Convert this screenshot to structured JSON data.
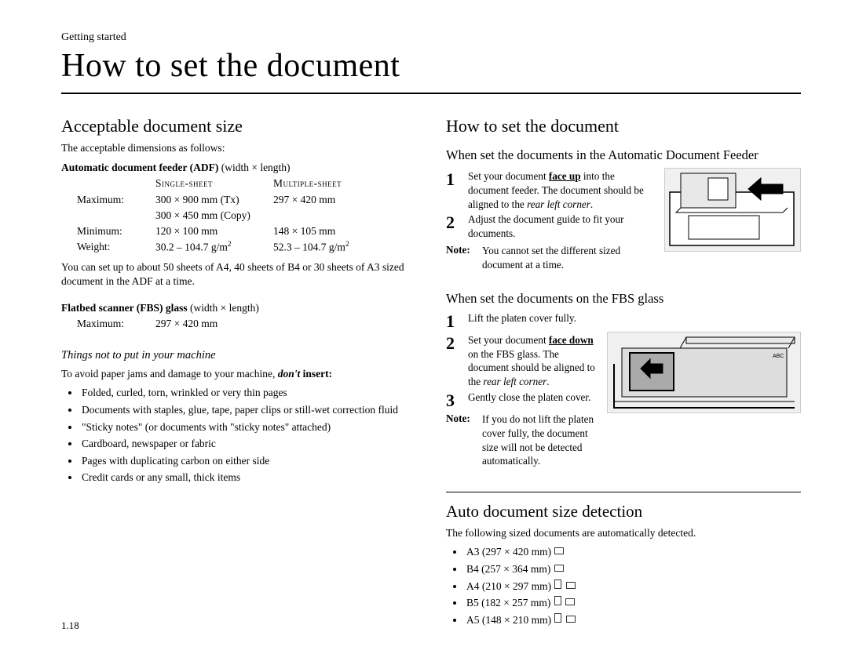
{
  "breadcrumb": "Getting started",
  "title": "How to set the document",
  "pageNumber": "1.18",
  "left": {
    "h2": "Acceptable document size",
    "intro": "The acceptable dimensions as follows:",
    "adf": {
      "heading_bold": "Automatic document feeder (ADF)",
      "heading_rest": " (width × length)",
      "col_a": "Single-sheet",
      "col_b": "Multiple-sheet",
      "rows": [
        {
          "label": "Maximum:",
          "a": "300 × 900 mm (Tx)",
          "b": "297 × 420 mm"
        },
        {
          "label": "",
          "a": "300 × 450 mm (Copy)",
          "b": ""
        },
        {
          "label": "Minimum:",
          "a": "120 × 100 mm",
          "b": "148 × 105 mm"
        },
        {
          "label": "Weight:",
          "a": "30.2 – 104.7 g/m²",
          "b": "52.3 – 104.7 g/m²"
        }
      ],
      "note": "You can set up to about 50 sheets of A4, 40 sheets of B4 or 30 sheets of A3 sized document in the ADF at a time."
    },
    "fbs": {
      "heading_bold": "Flatbed scanner (FBS) glass",
      "heading_rest": " (width × length)",
      "row_label": "Maximum:",
      "row_val": "297 × 420 mm"
    },
    "things": {
      "heading": "Things not to put in your machine",
      "intro_a": "To avoid paper jams and damage to your machine, ",
      "intro_b": "don't",
      "intro_c": " insert:",
      "items": [
        "Folded, curled, torn, wrinkled or very thin pages",
        "Documents with staples, glue, tape, paper clips or still-wet correction fluid",
        "\"Sticky notes\" (or documents with \"sticky notes\" attached)",
        "Cardboard, newspaper or fabric",
        "Pages with duplicating carbon on either side",
        "Credit cards or any small, thick items"
      ]
    }
  },
  "right": {
    "h2": "How to set the document",
    "adf": {
      "heading": "When set the documents in the Automatic Document Feeder",
      "step1_a": "Set your document ",
      "step1_b": "face up",
      "step1_c": " into the document feeder. The document should be aligned to the ",
      "step1_d": "rear left corner",
      "step1_e": ".",
      "figure_w": 172,
      "figure_h": 105,
      "step2": "Adjust the document guide to fit your documents.",
      "note": "You cannot set the different sized document at a time."
    },
    "fbs": {
      "heading": "When set the documents on the FBS glass",
      "step1": "Lift the platen cover fully.",
      "step2_a": "Set your document ",
      "step2_b": "face down",
      "step2_c": " on the FBS glass. The document should be aligned to the ",
      "step2_d": "rear left corner",
      "step2_e": ".",
      "figure_w": 245,
      "figure_h": 102,
      "step3": "Gently close the platen cover.",
      "note": "If you do not lift the platen cover fully, the document size will not be detected automatically."
    },
    "auto": {
      "heading": "Auto document size detection",
      "intro": "The following sized documents are automatically detected.",
      "items": [
        {
          "label": "A3 (297 × 420 mm)",
          "port": false,
          "land": true
        },
        {
          "label": "B4 (257 × 364 mm)",
          "port": false,
          "land": true
        },
        {
          "label": "A4 (210 × 297 mm)",
          "port": true,
          "land": true
        },
        {
          "label": "B5 (182 × 257 mm)",
          "port": true,
          "land": true
        },
        {
          "label": "A5 (148 × 210 mm)",
          "port": true,
          "land": true
        }
      ]
    }
  }
}
